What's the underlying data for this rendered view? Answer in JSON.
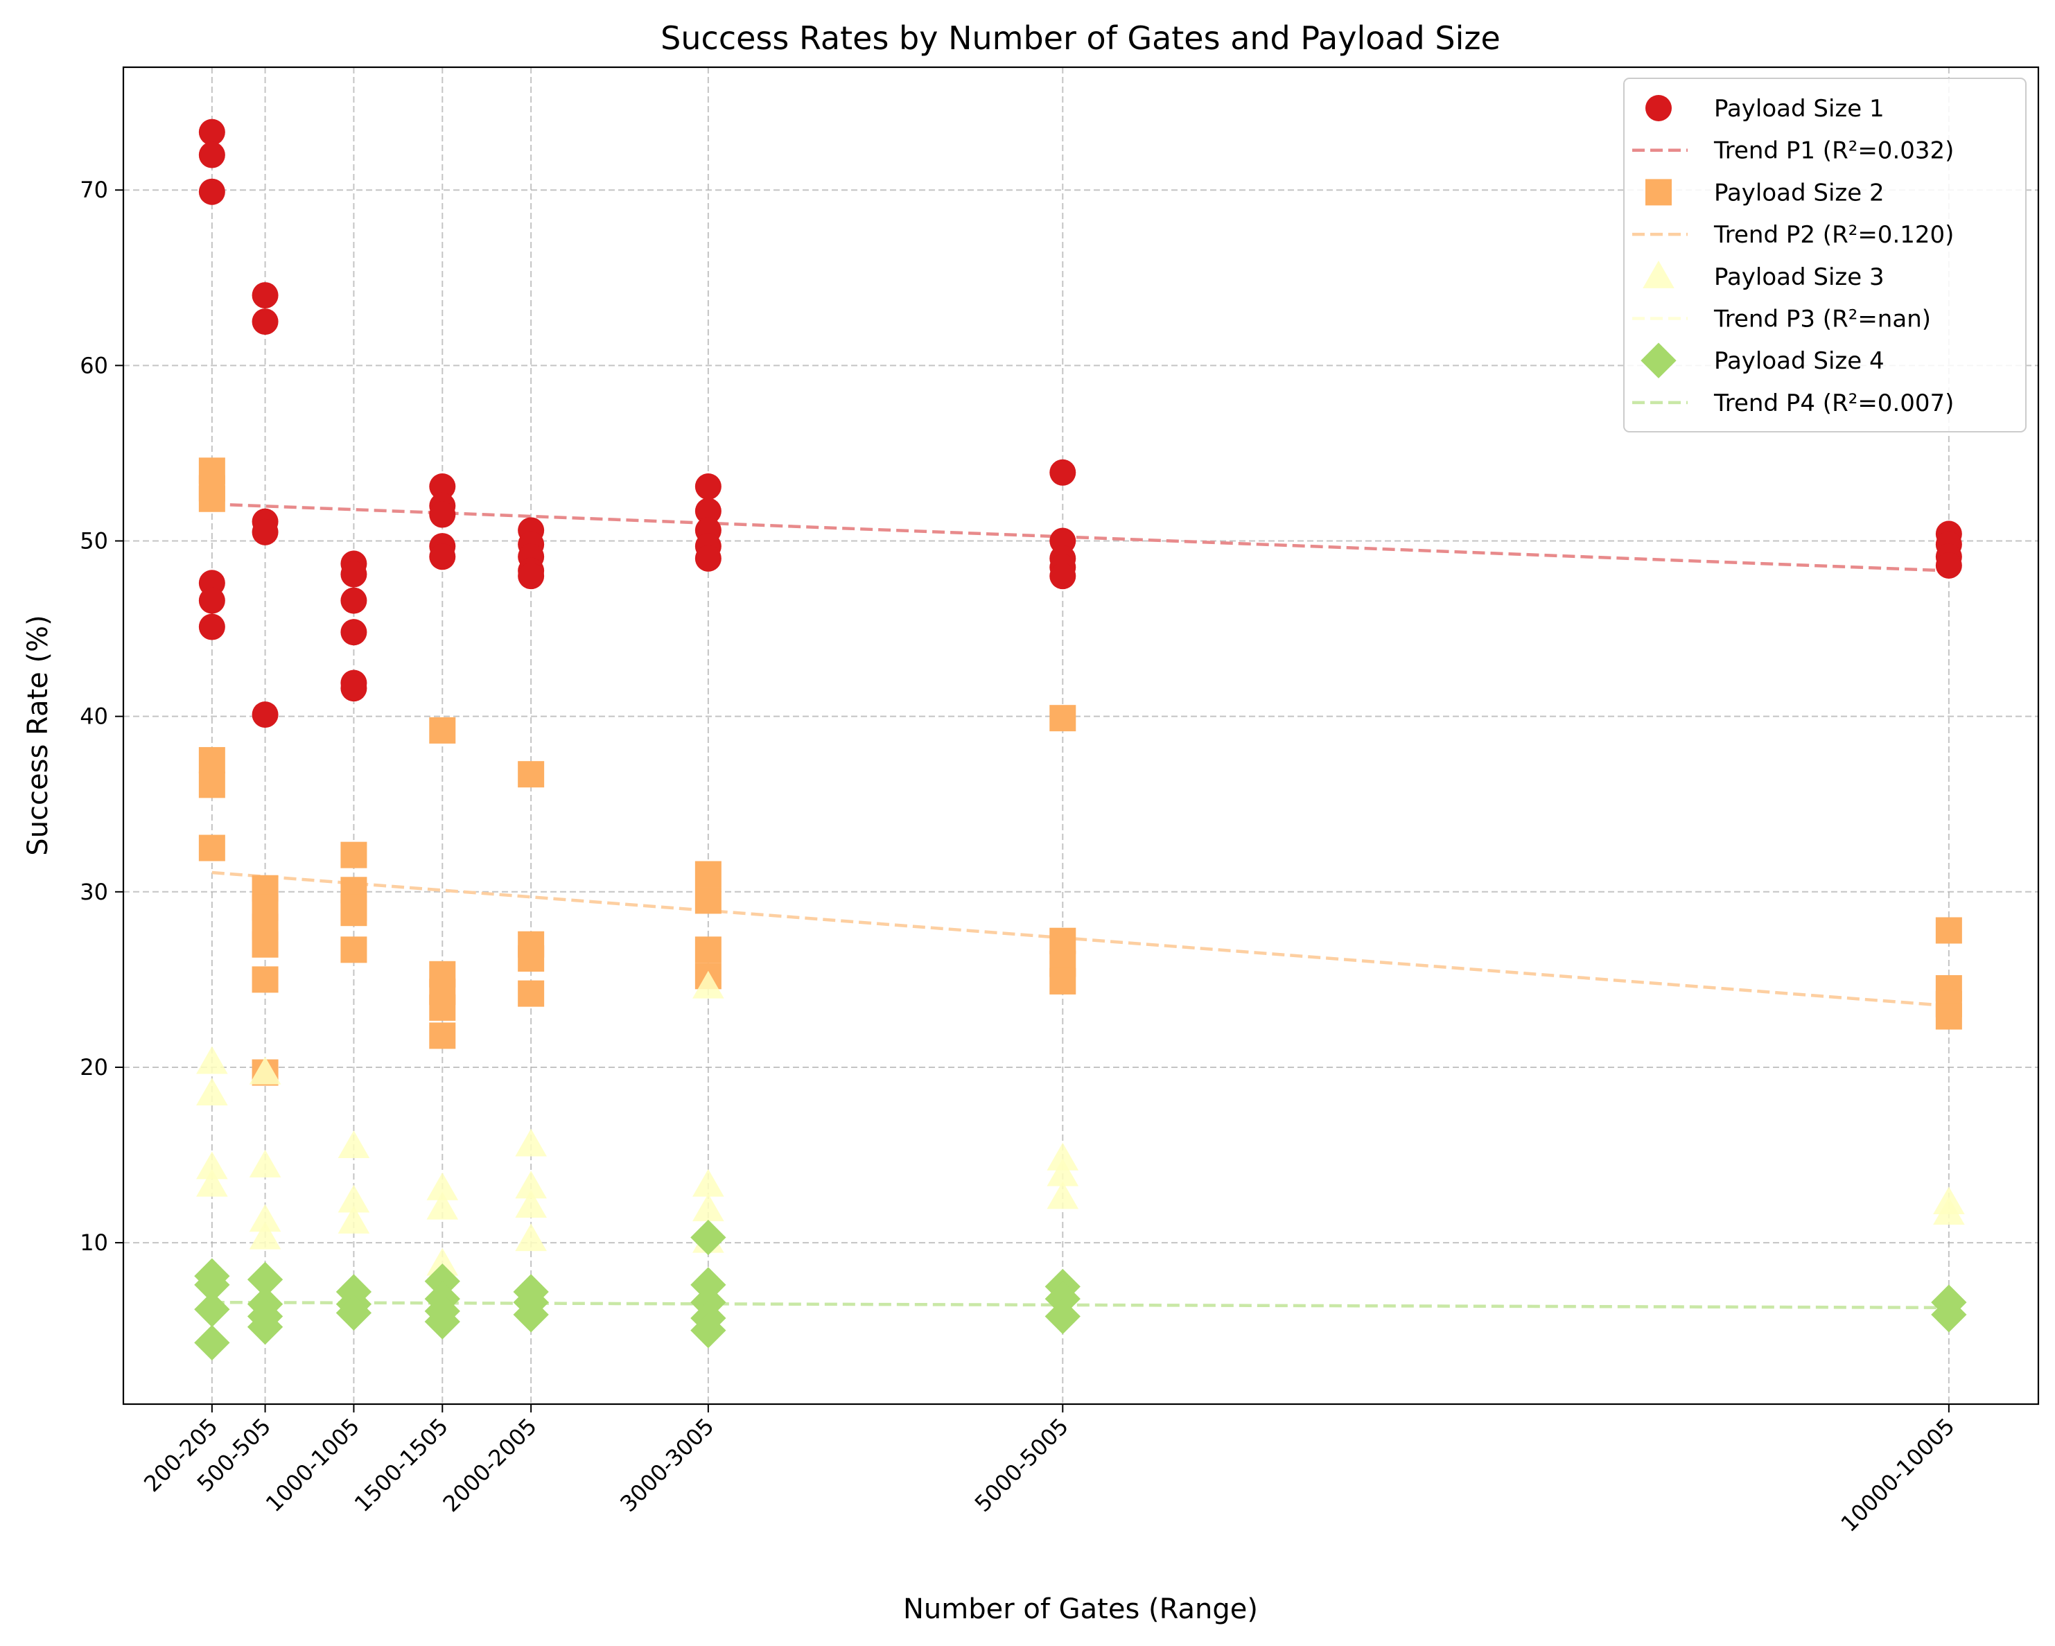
{
  "chart_data": {
    "type": "scatter",
    "title": "Success Rates by Number of Gates and Payload Size",
    "xlabel": "Number of Gates (Range)",
    "ylabel": "Success Rate (%)",
    "xlim": [
      -300,
      10505
    ],
    "ylim": [
      0.8,
      77
    ],
    "grid": true,
    "legend_position": "top-right",
    "x_ticks": [
      200,
      500,
      1000,
      1500,
      2000,
      3000,
      5000,
      10000
    ],
    "x_tick_labels": [
      "200-205",
      "500-505",
      "1000-1005",
      "1500-1505",
      "2000-2005",
      "3000-3005",
      "5000-5005",
      "10000-10005"
    ],
    "y_ticks": [
      10,
      20,
      30,
      40,
      50,
      60,
      70
    ],
    "series": [
      {
        "name": "Payload Size 1",
        "marker": "circle",
        "color": "#d7191c",
        "points": [
          [
            200,
            73.3
          ],
          [
            200,
            72.0
          ],
          [
            200,
            69.9
          ],
          [
            200,
            47.6
          ],
          [
            200,
            46.6
          ],
          [
            200,
            45.1
          ],
          [
            500,
            64.0
          ],
          [
            500,
            62.5
          ],
          [
            500,
            51.1
          ],
          [
            500,
            50.5
          ],
          [
            500,
            40.1
          ],
          [
            1000,
            48.7
          ],
          [
            1000,
            48.1
          ],
          [
            1000,
            46.6
          ],
          [
            1000,
            44.8
          ],
          [
            1000,
            41.9
          ],
          [
            1000,
            41.6
          ],
          [
            1500,
            53.1
          ],
          [
            1500,
            52.0
          ],
          [
            1500,
            51.5
          ],
          [
            1500,
            49.7
          ],
          [
            1500,
            49.1
          ],
          [
            2000,
            50.6
          ],
          [
            2000,
            49.8
          ],
          [
            2000,
            49.1
          ],
          [
            2000,
            48.3
          ],
          [
            2000,
            48.0
          ],
          [
            3000,
            53.1
          ],
          [
            3000,
            51.7
          ],
          [
            3000,
            50.6
          ],
          [
            3000,
            49.7
          ],
          [
            3000,
            49.0
          ],
          [
            5000,
            53.9
          ],
          [
            5000,
            50.0
          ],
          [
            5000,
            49.0
          ],
          [
            5000,
            48.5
          ],
          [
            5000,
            48.0
          ],
          [
            10000,
            50.4
          ],
          [
            10000,
            49.8
          ],
          [
            10000,
            49.1
          ],
          [
            10000,
            48.6
          ]
        ]
      },
      {
        "name": "Payload Size 2",
        "marker": "square",
        "color": "#fdae61",
        "points": [
          [
            200,
            54.0
          ],
          [
            200,
            53.0
          ],
          [
            200,
            52.4
          ],
          [
            200,
            37.5
          ],
          [
            200,
            36.1
          ],
          [
            200,
            32.5
          ],
          [
            500,
            30.2
          ],
          [
            500,
            29.1
          ],
          [
            500,
            28.0
          ],
          [
            500,
            27.0
          ],
          [
            500,
            25.0
          ],
          [
            500,
            19.7
          ],
          [
            1000,
            32.1
          ],
          [
            1000,
            30.1
          ],
          [
            1000,
            29.1
          ],
          [
            1000,
            28.8
          ],
          [
            1000,
            26.7
          ],
          [
            1500,
            39.2
          ],
          [
            1500,
            25.3
          ],
          [
            1500,
            24.3
          ],
          [
            1500,
            23.4
          ],
          [
            1500,
            21.8
          ],
          [
            2000,
            36.7
          ],
          [
            2000,
            27.0
          ],
          [
            2000,
            26.2
          ],
          [
            2000,
            24.2
          ],
          [
            3000,
            31.0
          ],
          [
            3000,
            29.5
          ],
          [
            3000,
            26.7
          ],
          [
            3000,
            25.2
          ],
          [
            5000,
            39.9
          ],
          [
            5000,
            27.2
          ],
          [
            5000,
            25.9
          ],
          [
            5000,
            24.9
          ],
          [
            10000,
            27.8
          ],
          [
            10000,
            24.5
          ],
          [
            10000,
            23.6
          ],
          [
            10000,
            22.9
          ]
        ]
      },
      {
        "name": "Payload Size 3",
        "marker": "triangle",
        "color": "#ffffbf",
        "points": [
          [
            200,
            20.3
          ],
          [
            200,
            18.5
          ],
          [
            200,
            14.3
          ],
          [
            200,
            13.3
          ],
          [
            500,
            19.7
          ],
          [
            500,
            14.4
          ],
          [
            500,
            11.3
          ],
          [
            500,
            10.3
          ],
          [
            1000,
            15.5
          ],
          [
            1000,
            12.4
          ],
          [
            1000,
            11.2
          ],
          [
            1500,
            13.1
          ],
          [
            1500,
            12.0
          ],
          [
            1500,
            8.8
          ],
          [
            2000,
            15.6
          ],
          [
            2000,
            13.2
          ],
          [
            2000,
            12.1
          ],
          [
            2000,
            10.2
          ],
          [
            3000,
            24.6
          ],
          [
            3000,
            13.3
          ],
          [
            3000,
            11.9
          ],
          [
            3000,
            10.1
          ],
          [
            5000,
            14.8
          ],
          [
            5000,
            13.9
          ],
          [
            5000,
            12.6
          ],
          [
            10000,
            12.3
          ],
          [
            10000,
            11.7
          ]
        ]
      },
      {
        "name": "Payload Size 4",
        "marker": "diamond",
        "color": "#a6d96a",
        "points": [
          [
            200,
            8.1
          ],
          [
            200,
            7.6
          ],
          [
            200,
            6.2
          ],
          [
            200,
            4.3
          ],
          [
            500,
            7.9
          ],
          [
            500,
            6.5
          ],
          [
            500,
            5.8
          ],
          [
            500,
            5.2
          ],
          [
            1000,
            7.2
          ],
          [
            1000,
            6.5
          ],
          [
            1000,
            6.0
          ],
          [
            1500,
            7.8
          ],
          [
            1500,
            6.8
          ],
          [
            1500,
            6.1
          ],
          [
            1500,
            5.5
          ],
          [
            2000,
            7.2
          ],
          [
            2000,
            6.6
          ],
          [
            2000,
            5.9
          ],
          [
            3000,
            10.3
          ],
          [
            3000,
            7.6
          ],
          [
            3000,
            6.6
          ],
          [
            3000,
            5.7
          ],
          [
            3000,
            5.0
          ],
          [
            5000,
            7.5
          ],
          [
            5000,
            6.8
          ],
          [
            5000,
            5.8
          ],
          [
            10000,
            6.6
          ],
          [
            10000,
            5.9
          ]
        ]
      }
    ],
    "trend_lines": [
      {
        "name": "Trend P1 (R²=0.032)",
        "color": "#e88a8b",
        "x": [
          200,
          10000
        ],
        "y": [
          52.1,
          48.3
        ]
      },
      {
        "name": "Trend P2 (R²=0.120)",
        "color": "#fdcfa1",
        "x": [
          200,
          10000
        ],
        "y": [
          31.1,
          23.5
        ]
      },
      {
        "name": "Trend P3 (R²=nan)",
        "color": "#ffffd8",
        "x": [
          200,
          10000
        ],
        "y": [
          null,
          null
        ]
      },
      {
        "name": "Trend P4 (R²=0.007)",
        "color": "#c9e8a6",
        "x": [
          200,
          10000
        ],
        "y": [
          6.6,
          6.3
        ]
      }
    ]
  }
}
